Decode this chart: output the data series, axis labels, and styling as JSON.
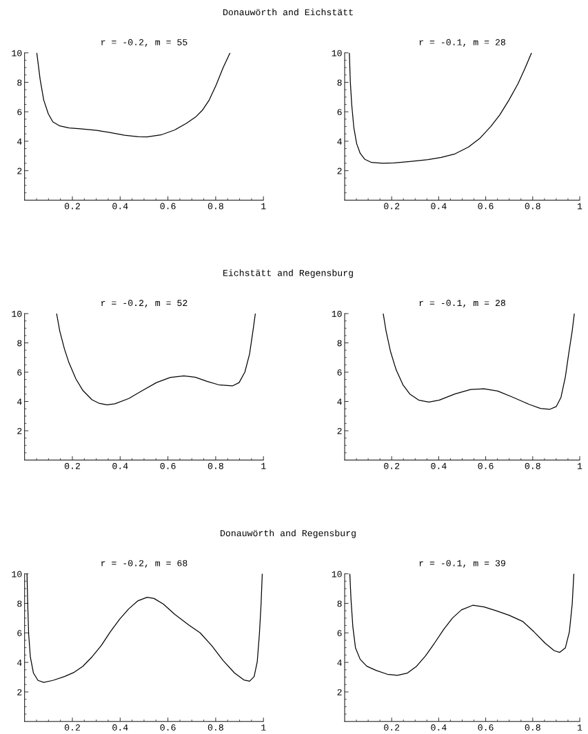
{
  "chart_data": [
    {
      "type": "line",
      "title": "r = -0.2, m = 55",
      "annotations": [
        "Donauwörth and Eichstätt"
      ],
      "x": [
        0.051,
        0.065,
        0.08,
        0.099,
        0.118,
        0.147,
        0.186,
        0.234,
        0.301,
        0.359,
        0.417,
        0.475,
        0.513,
        0.571,
        0.629,
        0.677,
        0.715,
        0.744,
        0.773,
        0.802,
        0.831,
        0.86
      ],
      "series": [
        {
          "color": "#000000",
          "values": [
            10,
            8.2,
            6.8,
            5.87,
            5.32,
            5.04,
            4.9,
            4.84,
            4.74,
            4.59,
            4.41,
            4.31,
            4.29,
            4.43,
            4.77,
            5.21,
            5.63,
            6.1,
            6.8,
            7.82,
            8.99,
            10
          ]
        }
      ],
      "xlim": [
        0,
        1
      ],
      "ylim": [
        0,
        10
      ],
      "xticks": [
        {
          "value": 0.05,
          "label": null
        },
        {
          "value": 0.1,
          "label": null
        },
        {
          "value": 0.15,
          "label": null
        },
        0.2,
        {
          "value": 0.25,
          "label": null
        },
        {
          "value": 0.3,
          "label": null
        },
        {
          "value": 0.35,
          "label": null
        },
        0.4,
        {
          "value": 0.45,
          "label": null
        },
        {
          "value": 0.5,
          "label": null
        },
        {
          "value": 0.55,
          "label": null
        },
        0.6,
        {
          "value": 0.65,
          "label": null
        },
        {
          "value": 0.7,
          "label": null
        },
        {
          "value": 0.75,
          "label": null
        },
        0.8,
        {
          "value": 0.85,
          "label": null
        },
        {
          "value": 0.9,
          "label": null
        },
        {
          "value": 0.95,
          "label": null
        },
        1
      ],
      "yticks": [
        {
          "value": 0.5,
          "label": null
        },
        {
          "value": 1,
          "label": null
        },
        {
          "value": 1.5,
          "label": null
        },
        2,
        {
          "value": 2.5,
          "label": null
        },
        {
          "value": 3,
          "label": null
        },
        {
          "value": 3.5,
          "label": null
        },
        4,
        {
          "value": 4.5,
          "label": null
        },
        {
          "value": 5,
          "label": null
        },
        {
          "value": 5.5,
          "label": null
        },
        6,
        {
          "value": 6.5,
          "label": null
        },
        {
          "value": 7,
          "label": null
        },
        {
          "value": 7.5,
          "label": null
        },
        8,
        {
          "value": 8.5,
          "label": null
        },
        {
          "value": 9,
          "label": null
        },
        {
          "value": 9.5,
          "label": null
        },
        10
      ]
    },
    {
      "type": "line",
      "title": "r = -0.1, m = 28",
      "x": [
        0.02,
        0.024,
        0.03,
        0.039,
        0.051,
        0.066,
        0.085,
        0.114,
        0.162,
        0.21,
        0.277,
        0.354,
        0.411,
        0.469,
        0.526,
        0.574,
        0.622,
        0.66,
        0.699,
        0.737,
        0.766,
        0.795
      ],
      "series": [
        {
          "color": "#000000",
          "values": [
            10,
            8.05,
            6.49,
            4.93,
            3.84,
            3.18,
            2.78,
            2.56,
            2.5,
            2.53,
            2.62,
            2.75,
            2.9,
            3.14,
            3.6,
            4.18,
            5.01,
            5.79,
            6.8,
            7.89,
            8.91,
            10
          ]
        }
      ],
      "xlim": [
        0,
        1
      ],
      "ylim": [
        0,
        10
      ],
      "xticks": [
        {
          "value": 0.05,
          "label": null
        },
        {
          "value": 0.1,
          "label": null
        },
        {
          "value": 0.15,
          "label": null
        },
        0.2,
        {
          "value": 0.25,
          "label": null
        },
        {
          "value": 0.3,
          "label": null
        },
        {
          "value": 0.35,
          "label": null
        },
        0.4,
        {
          "value": 0.45,
          "label": null
        },
        {
          "value": 0.5,
          "label": null
        },
        {
          "value": 0.55,
          "label": null
        },
        0.6,
        {
          "value": 0.65,
          "label": null
        },
        {
          "value": 0.7,
          "label": null
        },
        {
          "value": 0.75,
          "label": null
        },
        0.8,
        {
          "value": 0.85,
          "label": null
        },
        {
          "value": 0.9,
          "label": null
        },
        {
          "value": 0.95,
          "label": null
        },
        1
      ],
      "yticks": [
        {
          "value": 0.5,
          "label": null
        },
        {
          "value": 1,
          "label": null
        },
        {
          "value": 1.5,
          "label": null
        },
        2,
        {
          "value": 2.5,
          "label": null
        },
        {
          "value": 3,
          "label": null
        },
        {
          "value": 3.5,
          "label": null
        },
        4,
        {
          "value": 4.5,
          "label": null
        },
        {
          "value": 5,
          "label": null
        },
        {
          "value": 5.5,
          "label": null
        },
        6,
        {
          "value": 6.5,
          "label": null
        },
        {
          "value": 7,
          "label": null
        },
        {
          "value": 7.5,
          "label": null
        },
        8,
        {
          "value": 8.5,
          "label": null
        },
        {
          "value": 9,
          "label": null
        },
        {
          "value": 9.5,
          "label": null
        },
        10
      ]
    },
    {
      "type": "line",
      "title": "r = -0.2, m = 52",
      "annotations": [
        "Eichstätt and Regensburg"
      ],
      "x": [
        0.134,
        0.147,
        0.167,
        0.186,
        0.215,
        0.244,
        0.282,
        0.311,
        0.345,
        0.378,
        0.436,
        0.494,
        0.552,
        0.61,
        0.667,
        0.715,
        0.764,
        0.812,
        0.87,
        0.898,
        0.922,
        0.942,
        0.956,
        0.966
      ],
      "series": [
        {
          "color": "#000000",
          "values": [
            10,
            8.82,
            7.57,
            6.63,
            5.53,
            4.75,
            4.12,
            3.88,
            3.77,
            3.84,
            4.2,
            4.75,
            5.29,
            5.64,
            5.75,
            5.65,
            5.37,
            5.14,
            5.06,
            5.29,
            6.0,
            7.25,
            8.82,
            10
          ]
        }
      ],
      "xlim": [
        0,
        1
      ],
      "ylim": [
        0,
        10
      ],
      "xticks": [
        {
          "value": 0.05,
          "label": null
        },
        {
          "value": 0.1,
          "label": null
        },
        {
          "value": 0.15,
          "label": null
        },
        0.2,
        {
          "value": 0.25,
          "label": null
        },
        {
          "value": 0.3,
          "label": null
        },
        {
          "value": 0.35,
          "label": null
        },
        0.4,
        {
          "value": 0.45,
          "label": null
        },
        {
          "value": 0.5,
          "label": null
        },
        {
          "value": 0.55,
          "label": null
        },
        0.6,
        {
          "value": 0.65,
          "label": null
        },
        {
          "value": 0.7,
          "label": null
        },
        {
          "value": 0.75,
          "label": null
        },
        0.8,
        {
          "value": 0.85,
          "label": null
        },
        {
          "value": 0.9,
          "label": null
        },
        {
          "value": 0.95,
          "label": null
        },
        1
      ],
      "yticks": [
        {
          "value": 0.5,
          "label": null
        },
        {
          "value": 1,
          "label": null
        },
        {
          "value": 1.5,
          "label": null
        },
        2,
        {
          "value": 2.5,
          "label": null
        },
        {
          "value": 3,
          "label": null
        },
        {
          "value": 3.5,
          "label": null
        },
        4,
        {
          "value": 4.5,
          "label": null
        },
        {
          "value": 5,
          "label": null
        },
        {
          "value": 5.5,
          "label": null
        },
        6,
        {
          "value": 6.5,
          "label": null
        },
        {
          "value": 7,
          "label": null
        },
        {
          "value": 7.5,
          "label": null
        },
        8,
        {
          "value": 8.5,
          "label": null
        },
        {
          "value": 9,
          "label": null
        },
        {
          "value": 9.5,
          "label": null
        },
        10
      ]
    },
    {
      "type": "line",
      "title": "r = -0.1, m = 28",
      "x": [
        0.164,
        0.176,
        0.195,
        0.219,
        0.248,
        0.277,
        0.315,
        0.358,
        0.402,
        0.469,
        0.536,
        0.593,
        0.651,
        0.718,
        0.785,
        0.833,
        0.872,
        0.9,
        0.92,
        0.939,
        0.953,
        0.968,
        0.977
      ],
      "series": [
        {
          "color": "#000000",
          "values": [
            10,
            8.82,
            7.41,
            6.16,
            5.14,
            4.51,
            4.09,
            3.96,
            4.09,
            4.51,
            4.82,
            4.87,
            4.71,
            4.27,
            3.8,
            3.52,
            3.46,
            3.65,
            4.27,
            5.69,
            7.25,
            8.82,
            10
          ]
        }
      ],
      "xlim": [
        0,
        1
      ],
      "ylim": [
        0,
        10
      ],
      "xticks": [
        {
          "value": 0.05,
          "label": null
        },
        {
          "value": 0.1,
          "label": null
        },
        {
          "value": 0.15,
          "label": null
        },
        0.2,
        {
          "value": 0.25,
          "label": null
        },
        {
          "value": 0.3,
          "label": null
        },
        {
          "value": 0.35,
          "label": null
        },
        0.4,
        {
          "value": 0.45,
          "label": null
        },
        {
          "value": 0.5,
          "label": null
        },
        {
          "value": 0.55,
          "label": null
        },
        0.6,
        {
          "value": 0.65,
          "label": null
        },
        {
          "value": 0.7,
          "label": null
        },
        {
          "value": 0.75,
          "label": null
        },
        0.8,
        {
          "value": 0.85,
          "label": null
        },
        {
          "value": 0.9,
          "label": null
        },
        {
          "value": 0.95,
          "label": null
        },
        1
      ],
      "yticks": [
        {
          "value": 0.5,
          "label": null
        },
        {
          "value": 1,
          "label": null
        },
        {
          "value": 1.5,
          "label": null
        },
        2,
        {
          "value": 2.5,
          "label": null
        },
        {
          "value": 3,
          "label": null
        },
        {
          "value": 3.5,
          "label": null
        },
        4,
        {
          "value": 4.5,
          "label": null
        },
        {
          "value": 5,
          "label": null
        },
        {
          "value": 5.5,
          "label": null
        },
        6,
        {
          "value": 6.5,
          "label": null
        },
        {
          "value": 7,
          "label": null
        },
        {
          "value": 7.5,
          "label": null
        },
        8,
        {
          "value": 8.5,
          "label": null
        },
        {
          "value": 9,
          "label": null
        },
        {
          "value": 9.5,
          "label": null
        },
        10
      ]
    },
    {
      "type": "line",
      "title": "r = -0.2, m = 68",
      "annotations": [
        "Donauwörth and Regensburg"
      ],
      "x": [
        0.01,
        0.013,
        0.017,
        0.024,
        0.037,
        0.056,
        0.08,
        0.118,
        0.167,
        0.205,
        0.244,
        0.282,
        0.321,
        0.359,
        0.398,
        0.436,
        0.475,
        0.513,
        0.542,
        0.581,
        0.629,
        0.687,
        0.735,
        0.783,
        0.831,
        0.879,
        0.918,
        0.942,
        0.961,
        0.974,
        0.983,
        0.99,
        0.995
      ],
      "series": [
        {
          "color": "#000000",
          "values": [
            10,
            7.95,
            5.92,
            4.37,
            3.28,
            2.78,
            2.65,
            2.78,
            3.04,
            3.31,
            3.74,
            4.37,
            5.14,
            6.08,
            6.93,
            7.63,
            8.18,
            8.41,
            8.33,
            7.95,
            7.25,
            6.54,
            6.0,
            5.14,
            4.13,
            3.28,
            2.81,
            2.73,
            3.04,
            4.05,
            5.92,
            7.95,
            10
          ]
        }
      ],
      "xlim": [
        0,
        1
      ],
      "ylim": [
        0,
        10
      ],
      "xticks": [
        {
          "value": 0.05,
          "label": null
        },
        {
          "value": 0.1,
          "label": null
        },
        {
          "value": 0.15,
          "label": null
        },
        0.2,
        {
          "value": 0.25,
          "label": null
        },
        {
          "value": 0.3,
          "label": null
        },
        {
          "value": 0.35,
          "label": null
        },
        0.4,
        {
          "value": 0.45,
          "label": null
        },
        {
          "value": 0.5,
          "label": null
        },
        {
          "value": 0.55,
          "label": null
        },
        0.6,
        {
          "value": 0.65,
          "label": null
        },
        {
          "value": 0.7,
          "label": null
        },
        {
          "value": 0.75,
          "label": null
        },
        0.8,
        {
          "value": 0.85,
          "label": null
        },
        {
          "value": 0.9,
          "label": null
        },
        {
          "value": 0.95,
          "label": null
        },
        1
      ],
      "yticks": [
        {
          "value": 0.5,
          "label": null
        },
        {
          "value": 1,
          "label": null
        },
        {
          "value": 1.5,
          "label": null
        },
        2,
        {
          "value": 2.5,
          "label": null
        },
        {
          "value": 3,
          "label": null
        },
        {
          "value": 3.5,
          "label": null
        },
        4,
        {
          "value": 4.5,
          "label": null
        },
        {
          "value": 5,
          "label": null
        },
        {
          "value": 5.5,
          "label": null
        },
        6,
        {
          "value": 6.5,
          "label": null
        },
        {
          "value": 7,
          "label": null
        },
        {
          "value": 7.5,
          "label": null
        },
        8,
        {
          "value": 8.5,
          "label": null
        },
        {
          "value": 9,
          "label": null
        },
        {
          "value": 9.5,
          "label": null
        },
        10
      ]
    },
    {
      "type": "line",
      "title": "r = -0.1, m = 39",
      "x": [
        0.022,
        0.027,
        0.035,
        0.046,
        0.066,
        0.094,
        0.133,
        0.181,
        0.224,
        0.267,
        0.306,
        0.344,
        0.382,
        0.421,
        0.459,
        0.497,
        0.545,
        0.593,
        0.642,
        0.699,
        0.757,
        0.805,
        0.853,
        0.891,
        0.915,
        0.939,
        0.956,
        0.968,
        0.975
      ],
      "series": [
        {
          "color": "#000000",
          "values": [
            10,
            8.26,
            6.39,
            4.99,
            4.21,
            3.74,
            3.46,
            3.2,
            3.12,
            3.28,
            3.74,
            4.44,
            5.3,
            6.23,
            7.01,
            7.56,
            7.87,
            7.76,
            7.51,
            7.2,
            6.78,
            6.08,
            5.3,
            4.8,
            4.68,
            4.99,
            6.08,
            7.95,
            10
          ]
        }
      ],
      "xlim": [
        0,
        1
      ],
      "ylim": [
        0,
        10
      ],
      "xticks": [
        {
          "value": 0.05,
          "label": null
        },
        {
          "value": 0.1,
          "label": null
        },
        {
          "value": 0.15,
          "label": null
        },
        0.2,
        {
          "value": 0.25,
          "label": null
        },
        {
          "value": 0.3,
          "label": null
        },
        {
          "value": 0.35,
          "label": null
        },
        0.4,
        {
          "value": 0.45,
          "label": null
        },
        {
          "value": 0.5,
          "label": null
        },
        {
          "value": 0.55,
          "label": null
        },
        0.6,
        {
          "value": 0.65,
          "label": null
        },
        {
          "value": 0.7,
          "label": null
        },
        {
          "value": 0.75,
          "label": null
        },
        0.8,
        {
          "value": 0.85,
          "label": null
        },
        {
          "value": 0.9,
          "label": null
        },
        {
          "value": 0.95,
          "label": null
        },
        1
      ],
      "yticks": [
        {
          "value": 0.5,
          "label": null
        },
        {
          "value": 1,
          "label": null
        },
        {
          "value": 1.5,
          "label": null
        },
        2,
        {
          "value": 2.5,
          "label": null
        },
        {
          "value": 3,
          "label": null
        },
        {
          "value": 3.5,
          "label": null
        },
        4,
        {
          "value": 4.5,
          "label": null
        },
        {
          "value": 5,
          "label": null
        },
        {
          "value": 5.5,
          "label": null
        },
        6,
        {
          "value": 6.5,
          "label": null
        },
        {
          "value": 7,
          "label": null
        },
        {
          "value": 7.5,
          "label": null
        },
        8,
        {
          "value": 8.5,
          "label": null
        },
        {
          "value": 9,
          "label": null
        },
        {
          "value": 9.5,
          "label": null
        },
        10
      ]
    }
  ]
}
